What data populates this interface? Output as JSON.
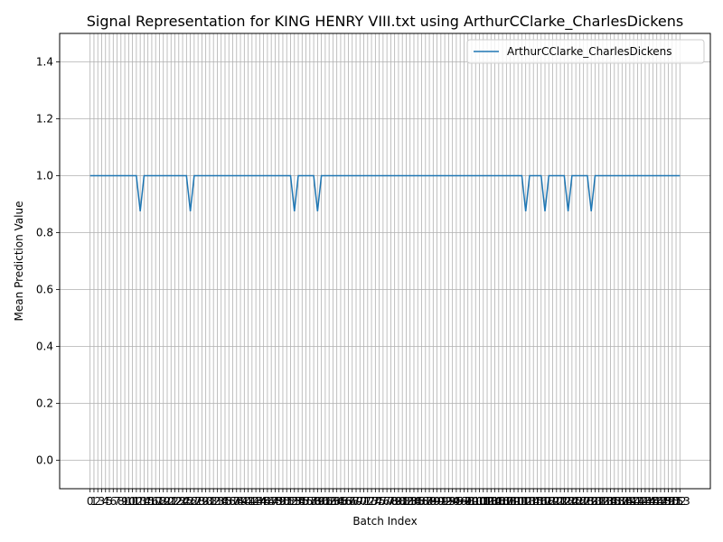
{
  "chart_data": {
    "type": "line",
    "title": "Signal Representation for KING HENRY VIII.txt using ArthurCClarke_CharlesDickens",
    "xlabel": "Batch Index",
    "ylabel": "Mean Prediction Value",
    "xlim": [
      -7.9,
      160.9
    ],
    "ylim": [
      -0.1,
      1.5
    ],
    "y_ticks": [
      0.0,
      0.2,
      0.4,
      0.6,
      0.8,
      1.0,
      1.2,
      1.4
    ],
    "x_count": 154,
    "grid": true,
    "legend_position": "top-right",
    "line_color": "#1f77b4",
    "dips": [
      13,
      26,
      53,
      59,
      113,
      118,
      124,
      130
    ],
    "baseline_value": 1.0,
    "dip_value": 0.875,
    "series": [
      {
        "name": "ArthurCClarke_CharlesDickens"
      }
    ]
  }
}
